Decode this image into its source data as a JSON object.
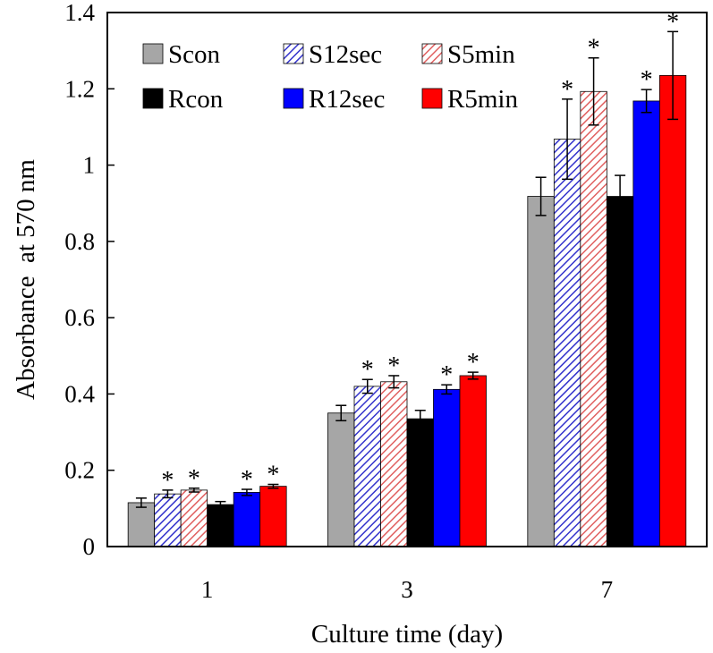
{
  "chart_data": {
    "type": "bar",
    "title": "",
    "xlabel": "Culture time (day)",
    "ylabel": "Absorbance  at 570 nm",
    "ylim": [
      0,
      1.4
    ],
    "yticks": [
      "0",
      "0.2",
      "0.4",
      "0.6",
      "0.8",
      "1",
      "1.2",
      "1.4"
    ],
    "grid": false,
    "legend_position": "top-left",
    "categories": [
      "1",
      "3",
      "7"
    ],
    "significance_marker": "*",
    "series": [
      {
        "name": "Scon",
        "values": [
          0.115,
          0.35,
          0.918
        ],
        "errors": [
          0.012,
          0.02,
          0.05
        ],
        "significant": [
          false,
          false,
          false
        ],
        "color": "#a6a6a6",
        "pattern": "solid"
      },
      {
        "name": "S12sec",
        "values": [
          0.138,
          0.42,
          1.068
        ],
        "errors": [
          0.01,
          0.018,
          0.105
        ],
        "significant": [
          true,
          true,
          true
        ],
        "color": "#3333cc",
        "pattern": "hatch"
      },
      {
        "name": "S5min",
        "values": [
          0.148,
          0.432,
          1.193
        ],
        "errors": [
          0.005,
          0.016,
          0.088
        ],
        "significant": [
          true,
          true,
          true
        ],
        "color": "#e06060",
        "pattern": "hatch"
      },
      {
        "name": "Rcon",
        "values": [
          0.11,
          0.335,
          0.918
        ],
        "errors": [
          0.008,
          0.022,
          0.055
        ],
        "significant": [
          false,
          false,
          false
        ],
        "color": "#000000",
        "pattern": "solid"
      },
      {
        "name": "R12sec",
        "values": [
          0.142,
          0.412,
          1.168
        ],
        "errors": [
          0.008,
          0.012,
          0.03
        ],
        "significant": [
          true,
          true,
          true
        ],
        "color": "#0000ff",
        "pattern": "solid"
      },
      {
        "name": "R5min",
        "values": [
          0.158,
          0.448,
          1.235
        ],
        "errors": [
          0.005,
          0.009,
          0.115
        ],
        "significant": [
          true,
          true,
          true
        ],
        "color": "#ff0000",
        "pattern": "solid"
      }
    ]
  }
}
